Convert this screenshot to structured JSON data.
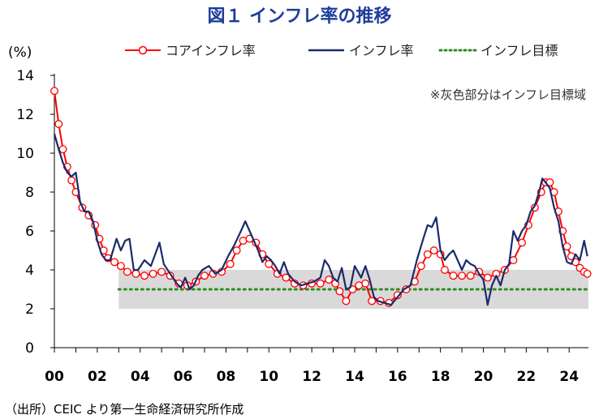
{
  "title": "図１ インフレ率の推移",
  "source": "（出所）CEIC より第一生命経済研究所作成",
  "chart_data": {
    "type": "line",
    "title": "図１ インフレ率の推移",
    "ylabel": "(%)",
    "xlabel": "",
    "ylim": [
      0,
      14
    ],
    "xlim": [
      2000.0,
      2024.9
    ],
    "y_ticks": [
      "0",
      "2",
      "4",
      "6",
      "8",
      "10",
      "12",
      "14"
    ],
    "x_ticks": [
      "00",
      "02",
      "04",
      "06",
      "08",
      "10",
      "12",
      "14",
      "16",
      "18",
      "20",
      "22",
      "24"
    ],
    "x_tick_values": [
      2000,
      2002,
      2004,
      2006,
      2008,
      2010,
      2012,
      2014,
      2016,
      2018,
      2020,
      2022,
      2024
    ],
    "grid": false,
    "legend_position": "top",
    "annotation": "※灰色部分はインフレ目標域",
    "target_band": {
      "start": 2003.0,
      "end": 2024.9,
      "low": 2,
      "high": 4,
      "color": "#d9d9d9"
    },
    "series": [
      {
        "name": "コアインフレ率",
        "style": "line-markers",
        "color": "#ff0000",
        "points": [
          [
            2000.0,
            13.2
          ],
          [
            2000.2,
            11.5
          ],
          [
            2000.4,
            10.2
          ],
          [
            2000.6,
            9.3
          ],
          [
            2000.8,
            8.6
          ],
          [
            2001.0,
            8.0
          ],
          [
            2001.3,
            7.2
          ],
          [
            2001.6,
            6.8
          ],
          [
            2001.9,
            6.3
          ],
          [
            2002.1,
            5.6
          ],
          [
            2002.3,
            5.0
          ],
          [
            2002.5,
            4.6
          ],
          [
            2002.8,
            4.4
          ],
          [
            2003.1,
            4.2
          ],
          [
            2003.4,
            3.9
          ],
          [
            2003.8,
            3.8
          ],
          [
            2004.2,
            3.7
          ],
          [
            2004.6,
            3.8
          ],
          [
            2005.0,
            3.9
          ],
          [
            2005.4,
            3.7
          ],
          [
            2005.8,
            3.3
          ],
          [
            2006.2,
            3.2
          ],
          [
            2006.6,
            3.4
          ],
          [
            2007.0,
            3.7
          ],
          [
            2007.4,
            3.8
          ],
          [
            2007.8,
            3.9
          ],
          [
            2008.2,
            4.3
          ],
          [
            2008.5,
            5.0
          ],
          [
            2008.8,
            5.5
          ],
          [
            2009.1,
            5.6
          ],
          [
            2009.4,
            5.4
          ],
          [
            2009.7,
            4.8
          ],
          [
            2010.0,
            4.3
          ],
          [
            2010.4,
            3.8
          ],
          [
            2010.8,
            3.6
          ],
          [
            2011.2,
            3.3
          ],
          [
            2011.6,
            3.2
          ],
          [
            2012.0,
            3.3
          ],
          [
            2012.4,
            3.3
          ],
          [
            2012.8,
            3.5
          ],
          [
            2013.1,
            3.3
          ],
          [
            2013.3,
            2.9
          ],
          [
            2013.6,
            2.4
          ],
          [
            2013.9,
            3.0
          ],
          [
            2014.2,
            3.2
          ],
          [
            2014.5,
            3.3
          ],
          [
            2014.8,
            2.4
          ],
          [
            2015.2,
            2.4
          ],
          [
            2015.6,
            2.3
          ],
          [
            2016.0,
            2.7
          ],
          [
            2016.4,
            3.0
          ],
          [
            2016.8,
            3.4
          ],
          [
            2017.1,
            4.2
          ],
          [
            2017.4,
            4.8
          ],
          [
            2017.7,
            5.0
          ],
          [
            2018.0,
            4.8
          ],
          [
            2018.2,
            4.0
          ],
          [
            2018.6,
            3.7
          ],
          [
            2019.0,
            3.7
          ],
          [
            2019.4,
            3.7
          ],
          [
            2019.8,
            3.9
          ],
          [
            2020.2,
            3.6
          ],
          [
            2020.6,
            3.8
          ],
          [
            2021.0,
            4.0
          ],
          [
            2021.4,
            4.5
          ],
          [
            2021.8,
            5.4
          ],
          [
            2022.1,
            6.3
          ],
          [
            2022.4,
            7.2
          ],
          [
            2022.7,
            8.0
          ],
          [
            2022.9,
            8.5
          ],
          [
            2023.1,
            8.5
          ],
          [
            2023.3,
            8.0
          ],
          [
            2023.5,
            7.0
          ],
          [
            2023.7,
            6.0
          ],
          [
            2023.9,
            5.2
          ],
          [
            2024.1,
            4.7
          ],
          [
            2024.3,
            4.4
          ],
          [
            2024.5,
            4.1
          ],
          [
            2024.7,
            3.9
          ],
          [
            2024.85,
            3.8
          ]
        ]
      },
      {
        "name": "インフレ率",
        "style": "line",
        "color": "#1a2a6c",
        "points": [
          [
            2000.0,
            11.0
          ],
          [
            2000.2,
            10.2
          ],
          [
            2000.4,
            9.5
          ],
          [
            2000.6,
            9.0
          ],
          [
            2000.8,
            8.8
          ],
          [
            2001.0,
            9.0
          ],
          [
            2001.2,
            7.5
          ],
          [
            2001.4,
            7.0
          ],
          [
            2001.6,
            7.0
          ],
          [
            2001.8,
            6.5
          ],
          [
            2002.0,
            5.5
          ],
          [
            2002.2,
            4.8
          ],
          [
            2002.4,
            4.5
          ],
          [
            2002.6,
            4.5
          ],
          [
            2002.9,
            5.6
          ],
          [
            2003.1,
            5.0
          ],
          [
            2003.3,
            5.5
          ],
          [
            2003.5,
            5.6
          ],
          [
            2003.7,
            4.0
          ],
          [
            2003.9,
            4.0
          ],
          [
            2004.2,
            4.5
          ],
          [
            2004.5,
            4.2
          ],
          [
            2004.7,
            4.8
          ],
          [
            2004.9,
            5.4
          ],
          [
            2005.1,
            4.3
          ],
          [
            2005.4,
            3.8
          ],
          [
            2005.7,
            3.3
          ],
          [
            2005.9,
            3.1
          ],
          [
            2006.1,
            3.6
          ],
          [
            2006.3,
            3.0
          ],
          [
            2006.5,
            3.2
          ],
          [
            2006.7,
            3.7
          ],
          [
            2006.9,
            4.0
          ],
          [
            2007.2,
            4.2
          ],
          [
            2007.5,
            3.8
          ],
          [
            2007.8,
            4.0
          ],
          [
            2008.1,
            4.7
          ],
          [
            2008.4,
            5.3
          ],
          [
            2008.7,
            6.0
          ],
          [
            2008.9,
            6.5
          ],
          [
            2009.1,
            6.0
          ],
          [
            2009.3,
            5.5
          ],
          [
            2009.5,
            5.0
          ],
          [
            2009.7,
            4.4
          ],
          [
            2009.9,
            4.7
          ],
          [
            2010.1,
            4.5
          ],
          [
            2010.3,
            4.2
          ],
          [
            2010.5,
            3.8
          ],
          [
            2010.7,
            4.4
          ],
          [
            2010.9,
            3.8
          ],
          [
            2011.2,
            3.4
          ],
          [
            2011.5,
            3.2
          ],
          [
            2011.8,
            3.3
          ],
          [
            2012.1,
            3.4
          ],
          [
            2012.4,
            3.6
          ],
          [
            2012.6,
            4.5
          ],
          [
            2012.8,
            4.2
          ],
          [
            2013.0,
            3.6
          ],
          [
            2013.2,
            3.4
          ],
          [
            2013.4,
            4.1
          ],
          [
            2013.6,
            3.0
          ],
          [
            2013.8,
            3.1
          ],
          [
            2014.0,
            4.2
          ],
          [
            2014.3,
            3.6
          ],
          [
            2014.5,
            4.2
          ],
          [
            2014.7,
            3.5
          ],
          [
            2014.9,
            2.6
          ],
          [
            2015.1,
            2.4
          ],
          [
            2015.4,
            2.3
          ],
          [
            2015.7,
            2.2
          ],
          [
            2016.0,
            2.6
          ],
          [
            2016.3,
            3.0
          ],
          [
            2016.6,
            3.2
          ],
          [
            2016.9,
            4.5
          ],
          [
            2017.2,
            5.6
          ],
          [
            2017.4,
            6.3
          ],
          [
            2017.6,
            6.2
          ],
          [
            2017.8,
            6.7
          ],
          [
            2018.0,
            5.0
          ],
          [
            2018.2,
            4.5
          ],
          [
            2018.4,
            4.8
          ],
          [
            2018.6,
            5.0
          ],
          [
            2018.8,
            4.5
          ],
          [
            2019.0,
            4.0
          ],
          [
            2019.2,
            4.5
          ],
          [
            2019.4,
            4.3
          ],
          [
            2019.6,
            4.2
          ],
          [
            2019.8,
            3.8
          ],
          [
            2020.0,
            3.5
          ],
          [
            2020.2,
            2.2
          ],
          [
            2020.4,
            3.2
          ],
          [
            2020.6,
            3.7
          ],
          [
            2020.8,
            3.2
          ],
          [
            2021.0,
            4.0
          ],
          [
            2021.2,
            4.3
          ],
          [
            2021.4,
            6.0
          ],
          [
            2021.6,
            5.5
          ],
          [
            2021.8,
            6.0
          ],
          [
            2022.0,
            6.3
          ],
          [
            2022.2,
            7.0
          ],
          [
            2022.4,
            7.3
          ],
          [
            2022.6,
            8.0
          ],
          [
            2022.75,
            8.7
          ],
          [
            2022.9,
            8.5
          ],
          [
            2023.1,
            8.2
          ],
          [
            2023.3,
            7.2
          ],
          [
            2023.5,
            6.5
          ],
          [
            2023.7,
            5.2
          ],
          [
            2023.9,
            4.4
          ],
          [
            2024.1,
            4.3
          ],
          [
            2024.3,
            4.8
          ],
          [
            2024.5,
            4.5
          ],
          [
            2024.7,
            5.5
          ],
          [
            2024.85,
            4.7
          ]
        ]
      },
      {
        "name": "インフレ目標",
        "style": "dotted",
        "color": "#2e8b22",
        "points": [
          [
            2003.0,
            3.0
          ],
          [
            2024.9,
            3.0
          ]
        ]
      }
    ]
  }
}
